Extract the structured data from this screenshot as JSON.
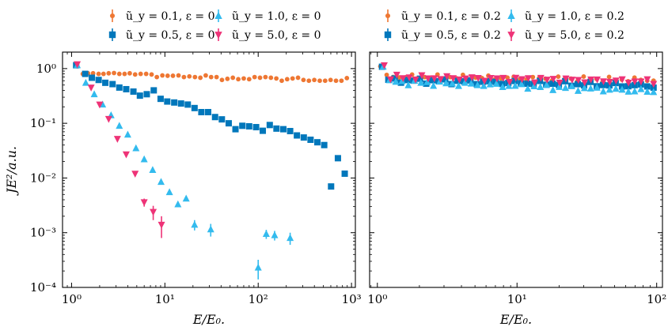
{
  "chart_data": [
    {
      "type": "scatter",
      "xscale": "log",
      "yscale": "log",
      "xlim": [
        0.8,
        1100
      ],
      "ylim": [
        0.0001,
        2
      ],
      "xlabel": "E/E₀.",
      "ylabel": "JE²/a.u.",
      "xticks": [
        {
          "v": 1,
          "label": "10⁰"
        },
        {
          "v": 10,
          "label": "10¹"
        },
        {
          "v": 100,
          "label": "10²"
        },
        {
          "v": 1000,
          "label": "10³"
        }
      ],
      "yticks": [
        {
          "v": 1,
          "label": "10⁰"
        },
        {
          "v": 0.1,
          "label": "10⁻¹"
        },
        {
          "v": 0.01,
          "label": "10⁻²"
        },
        {
          "v": 0.001,
          "label": "10⁻³"
        },
        {
          "v": 0.0001,
          "label": "10⁻⁴"
        }
      ],
      "series": [
        {
          "name": "ũ_y = 0.1, ε = 0",
          "color": "#EE7733",
          "marker": "circle",
          "x": [
            1.15,
            1.32,
            1.5,
            1.7,
            1.95,
            2.2,
            2.5,
            2.85,
            3.25,
            3.7,
            4.2,
            4.8,
            5.5,
            6.3,
            7.2,
            8.2,
            9.4,
            10.7,
            12.2,
            14,
            16,
            18.3,
            21,
            24,
            27.4,
            31.3,
            35.8,
            40.9,
            46.8,
            53.5,
            61.2,
            70,
            80,
            91.5,
            104.6,
            119.6,
            136.8,
            156.4,
            178.8,
            204.4,
            233.7,
            267.2,
            305.5,
            349.3,
            399.3,
            456.6,
            522,
            596.8,
            682.3,
            780,
            891.9
          ],
          "y": [
            1.1,
            0.8,
            0.82,
            0.82,
            0.8,
            0.8,
            0.82,
            0.83,
            0.8,
            0.8,
            0.82,
            0.78,
            0.8,
            0.8,
            0.78,
            0.7,
            0.75,
            0.74,
            0.74,
            0.75,
            0.7,
            0.72,
            0.7,
            0.68,
            0.75,
            0.7,
            0.7,
            0.62,
            0.65,
            0.68,
            0.64,
            0.66,
            0.64,
            0.7,
            0.68,
            0.7,
            0.68,
            0.66,
            0.6,
            0.64,
            0.66,
            0.68,
            0.62,
            0.6,
            0.62,
            0.6,
            0.6,
            0.62,
            0.6,
            0.6,
            0.67
          ]
        },
        {
          "name": "ũ_y = 0.5, ε = 0",
          "color": "#0077BB",
          "marker": "square",
          "x": [
            1.12,
            1.4,
            1.65,
            1.95,
            2.3,
            2.75,
            3.25,
            3.85,
            4.6,
            5.4,
            6.4,
            7.6,
            9,
            10.6,
            12.6,
            14.9,
            17.6,
            20.8,
            24.6,
            29.1,
            34.5,
            40.8,
            48.3,
            57.1,
            67.6,
            80,
            95,
            112,
            133,
            157,
            186,
            220,
            260,
            308,
            364,
            431,
            510,
            604,
            715,
            846
          ],
          "y": [
            1.15,
            0.8,
            0.68,
            0.62,
            0.55,
            0.52,
            0.45,
            0.42,
            0.38,
            0.32,
            0.34,
            0.4,
            0.28,
            0.25,
            0.24,
            0.23,
            0.22,
            0.19,
            0.16,
            0.16,
            0.13,
            0.118,
            0.1,
            0.078,
            0.09,
            0.088,
            0.085,
            0.073,
            0.093,
            0.08,
            0.078,
            0.072,
            0.06,
            0.055,
            0.05,
            0.045,
            0.04,
            0.007,
            0.023,
            0.012
          ],
          "xsparse": true
        },
        {
          "name": "ũ_y = 1.0, ε = 0",
          "color": "#33BBEE",
          "marker": "triangle-up",
          "x": [
            1.15,
            1.42,
            1.75,
            2.15,
            2.65,
            3.25,
            4.0,
            4.9,
            6.0,
            7.4,
            9.1,
            11.2,
            13.8,
            16.9,
            20.8,
            31,
            100,
            122,
            150,
            220
          ],
          "y": [
            1.15,
            0.55,
            0.34,
            0.22,
            0.14,
            0.09,
            0.062,
            0.035,
            0.022,
            0.014,
            0.0085,
            0.0055,
            0.0033,
            0.0042,
            0.0014,
            0.00115,
            0.00023,
            0.00095,
            0.0009,
            0.0008
          ],
          "err": [
            0.1,
            0.03,
            0.02,
            0.01,
            0.008,
            0.005,
            0.003,
            0.002,
            0.0015,
            0.001,
            0.0005,
            0.0004,
            0.0003,
            0.0004,
            0.0003,
            0.0003,
            9e-05,
            0.00018,
            0.00018,
            0.0002
          ]
        },
        {
          "name": "ũ_y = 5.0, ε = 0",
          "color": "#EE3377",
          "marker": "triangle-down",
          "x": [
            1.15,
            1.62,
            2.0,
            2.5,
            3.1,
            3.85,
            4.8,
            6.0,
            7.5,
            9.2
          ],
          "y": [
            1.2,
            0.45,
            0.22,
            0.12,
            0.052,
            0.027,
            0.012,
            0.0036,
            0.0024,
            0.0014
          ],
          "err": [
            0.1,
            0.02,
            0.01,
            0.006,
            0.003,
            0.002,
            0.001,
            0.0006,
            0.0007,
            0.0006
          ]
        }
      ]
    },
    {
      "type": "scatter",
      "xscale": "log",
      "yscale": "log",
      "xlim": [
        0.88,
        110
      ],
      "ylim": [
        0.0001,
        2
      ],
      "xlabel": "E/E₀.",
      "ylabel": "",
      "xticks": [
        {
          "v": 1,
          "label": "10⁰"
        },
        {
          "v": 10,
          "label": "10¹"
        },
        {
          "v": 100,
          "label": "10²"
        }
      ],
      "yticks": [
        {
          "v": 1,
          "label": ""
        },
        {
          "v": 0.1,
          "label": ""
        },
        {
          "v": 0.01,
          "label": ""
        },
        {
          "v": 0.001,
          "label": ""
        },
        {
          "v": 0.0001,
          "label": ""
        }
      ],
      "series": [
        {
          "name": "ũ_y = 0.1, ε = 0.2",
          "color": "#EE7733",
          "marker": "circle",
          "fill_x": [
            1.05,
            95
          ],
          "fill_y": [
            1.1,
            0.72,
            0.62
          ]
        },
        {
          "name": "ũ_y = 0.5, ε = 0.2",
          "color": "#0077BB",
          "marker": "square",
          "fill_x": [
            1.08,
            95
          ],
          "fill_y": [
            1.08,
            0.62,
            0.48
          ]
        },
        {
          "name": "ũ_y = 1.0, ε = 0.2",
          "color": "#33BBEE",
          "marker": "triangle-up",
          "fill_x": [
            1.1,
            95
          ],
          "fill_y": [
            1.08,
            0.58,
            0.38
          ]
        },
        {
          "name": "ũ_y = 5.0, ε = 0.2",
          "color": "#EE3377",
          "marker": "triangle-down",
          "fill_x": [
            1.12,
            95
          ],
          "fill_y": [
            1.15,
            0.7,
            0.58
          ]
        }
      ]
    }
  ]
}
